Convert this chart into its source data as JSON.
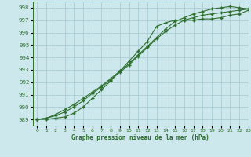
{
  "title": "Graphe pression niveau de la mer (hPa)",
  "background_color": "#cce8ec",
  "grid_color": "#aacdd4",
  "line_color": "#2d6e2d",
  "xlim": [
    -0.5,
    23
  ],
  "ylim": [
    988.5,
    998.5
  ],
  "yticks": [
    989,
    990,
    991,
    992,
    993,
    994,
    995,
    996,
    997,
    998
  ],
  "xticks": [
    0,
    1,
    2,
    3,
    4,
    5,
    6,
    7,
    8,
    9,
    10,
    11,
    12,
    13,
    14,
    15,
    16,
    17,
    18,
    19,
    20,
    21,
    22,
    23
  ],
  "line1_x": [
    0,
    1,
    2,
    3,
    4,
    5,
    6,
    7,
    8,
    9,
    10,
    11,
    12,
    13,
    14,
    15,
    16,
    17,
    18,
    19,
    20,
    21,
    22,
    23
  ],
  "line1_y": [
    989.0,
    989.0,
    989.1,
    989.2,
    989.5,
    990.0,
    990.7,
    991.4,
    992.1,
    992.9,
    993.7,
    994.5,
    995.3,
    996.5,
    996.8,
    997.0,
    997.0,
    997.0,
    997.1,
    997.1,
    997.2,
    997.4,
    997.5,
    997.8
  ],
  "line2_x": [
    0,
    1,
    2,
    3,
    4,
    5,
    6,
    7,
    8,
    9,
    10,
    11,
    12,
    13,
    14,
    15,
    16,
    17,
    18,
    19,
    20,
    21,
    22,
    23
  ],
  "line2_y": [
    989.0,
    989.1,
    989.3,
    989.6,
    990.0,
    990.5,
    991.1,
    991.6,
    992.2,
    992.8,
    993.4,
    994.1,
    994.8,
    995.5,
    996.1,
    996.6,
    997.0,
    997.2,
    997.4,
    997.5,
    997.6,
    997.7,
    997.8,
    997.9
  ],
  "line3_x": [
    0,
    1,
    2,
    3,
    4,
    5,
    6,
    7,
    8,
    9,
    10,
    11,
    12,
    13,
    14,
    15,
    16,
    17,
    18,
    19,
    20,
    21,
    22,
    23
  ],
  "line3_y": [
    989.0,
    989.1,
    989.4,
    989.8,
    990.2,
    990.7,
    991.2,
    991.7,
    992.3,
    992.9,
    993.5,
    994.2,
    994.9,
    995.6,
    996.3,
    996.9,
    997.2,
    997.5,
    997.7,
    997.9,
    998.0,
    998.1,
    998.0,
    997.9
  ]
}
